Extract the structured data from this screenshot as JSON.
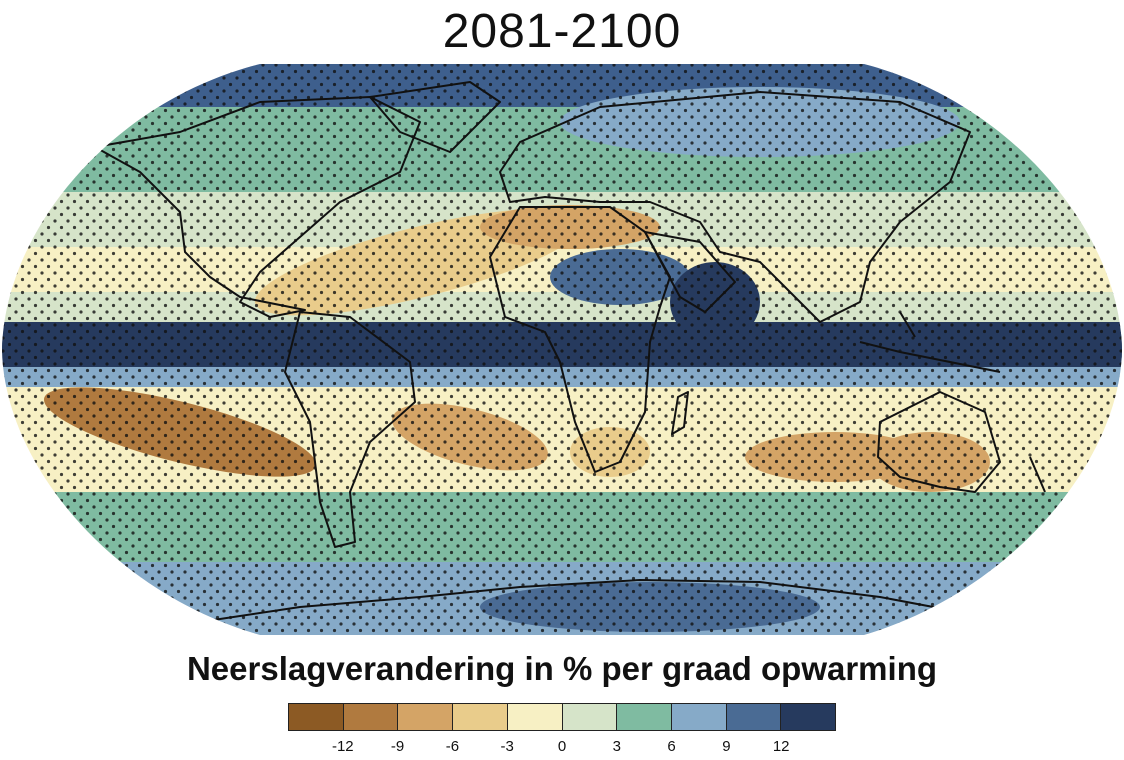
{
  "title": "2081-2100",
  "legend": {
    "label": "Neerslagverandering in % per graad opwarming",
    "ticks": [
      "-12",
      "-9",
      "-6",
      "-3",
      "0",
      "3",
      "6",
      "9",
      "12"
    ],
    "colors": [
      "#8c5a24",
      "#b07a3f",
      "#d4a466",
      "#e9cc8b",
      "#f7f0c4",
      "#d6e4c9",
      "#7fbba1",
      "#86aac8",
      "#4a6b94",
      "#263a5e"
    ]
  },
  "map": {
    "projection": "robinson",
    "stippling": "significant-change",
    "ocean_band_colors": {
      "arctic": "#3e5f8d",
      "north_high": "#7fbba1",
      "north_mid": "#d6e4c9",
      "north_subtropic": "#e9cc8b",
      "equator": "#263a5e",
      "south_subtropic": "#d4a466",
      "south_mid": "#7fbba1",
      "antarctic": "#86aac8"
    }
  }
}
